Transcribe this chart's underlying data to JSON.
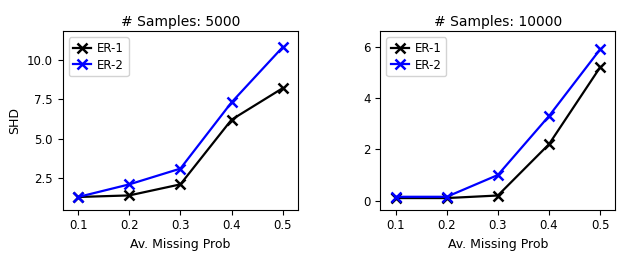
{
  "x": [
    0.1,
    0.2,
    0.3,
    0.4,
    0.5
  ],
  "plot1": {
    "title": "# Samples: 5000",
    "er1_y": [
      1.3,
      1.4,
      2.1,
      6.2,
      8.2
    ],
    "er2_y": [
      1.3,
      2.1,
      3.1,
      7.3,
      10.8
    ],
    "yticks": [
      2.5,
      5.0,
      7.5,
      10.0
    ],
    "yticklabels": [
      "2.5",
      "5.0",
      "7.5",
      "10.0"
    ],
    "ylim": [
      0.5,
      11.8
    ]
  },
  "plot2": {
    "title": "# Samples: 10000",
    "er1_y": [
      0.1,
      0.1,
      0.2,
      2.2,
      5.2
    ],
    "er2_y": [
      0.15,
      0.15,
      1.0,
      3.3,
      5.9
    ],
    "yticks": [
      0,
      2,
      4,
      6
    ],
    "yticklabels": [
      "0",
      "2",
      "4",
      "6"
    ],
    "ylim": [
      -0.35,
      6.6
    ]
  },
  "xlabel": "Av. Missing Prob",
  "ylabel": "SHD",
  "xticks": [
    0.1,
    0.2,
    0.3,
    0.4,
    0.5
  ],
  "xticklabels": [
    "0.1",
    "0.2",
    "0.3",
    "0.4",
    "0.5"
  ],
  "er1_color": "#000000",
  "er2_color": "#0000ff",
  "er1_label": "ER-1",
  "er2_label": "ER-2",
  "marker": "x",
  "linewidth": 1.6,
  "markersize": 7,
  "markeredgewidth": 1.8
}
